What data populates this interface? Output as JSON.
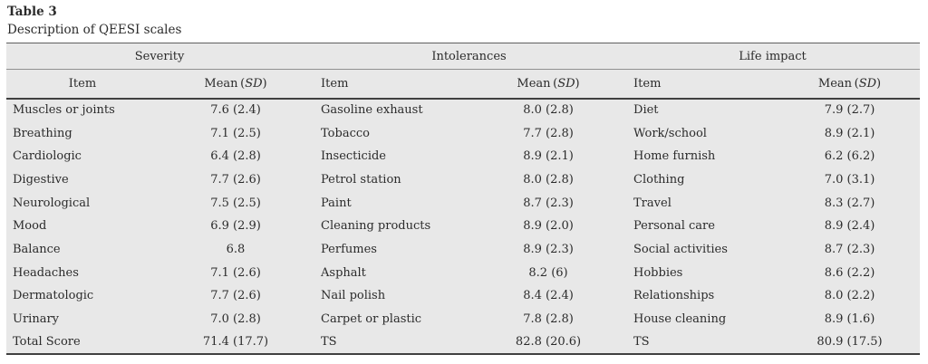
{
  "title": "Table 3",
  "subtitle": "Description of QEESI scales",
  "table": {
    "subheader": {
      "item_label": "Item",
      "mean_prefix": "Mean (",
      "mean_sd": "SD",
      "mean_suffix": ")"
    },
    "groups": [
      {
        "label": "Severity",
        "rows": [
          {
            "item": "Muscles or joints",
            "mean": "7.6 (2.4)"
          },
          {
            "item": "Breathing",
            "mean": "7.1 (2.5)"
          },
          {
            "item": "Cardiologic",
            "mean": "6.4 (2.8)"
          },
          {
            "item": "Digestive",
            "mean": "7.7 (2.6)"
          },
          {
            "item": "Neurological",
            "mean": "7.5 (2.5)"
          },
          {
            "item": "Mood",
            "mean": "6.9 (2.9)"
          },
          {
            "item": "Balance",
            "mean": "6.8"
          },
          {
            "item": "Headaches",
            "mean": "7.1 (2.6)"
          },
          {
            "item": "Dermatologic",
            "mean": "7.7 (2.6)"
          },
          {
            "item": "Urinary",
            "mean": "7.0 (2.8)"
          },
          {
            "item": "Total Score",
            "mean": "71.4 (17.7)"
          }
        ]
      },
      {
        "label": "Intolerances",
        "rows": [
          {
            "item": "Gasoline exhaust",
            "mean": "8.0 (2.8)"
          },
          {
            "item": "Tobacco",
            "mean": "7.7 (2.8)"
          },
          {
            "item": "Insecticide",
            "mean": "8.9 (2.1)"
          },
          {
            "item": "Petrol station",
            "mean": "8.0 (2.8)"
          },
          {
            "item": "Paint",
            "mean": "8.7 (2.3)"
          },
          {
            "item": "Cleaning products",
            "mean": "8.9 (2.0)"
          },
          {
            "item": "Perfumes",
            "mean": "8.9 (2.3)"
          },
          {
            "item": "Asphalt",
            "mean": "8.2 (6)"
          },
          {
            "item": "Nail polish",
            "mean": "8.4 (2.4)"
          },
          {
            "item": "Carpet or plastic",
            "mean": "7.8 (2.8)"
          },
          {
            "item": "TS",
            "mean": "82.8 (20.6)"
          }
        ]
      },
      {
        "label": "Life impact",
        "rows": [
          {
            "item": "Diet",
            "mean": "7.9 (2.7)"
          },
          {
            "item": "Work/school",
            "mean": "8.9 (2.1)"
          },
          {
            "item": "Home furnish",
            "mean": "6.2 (6.2)"
          },
          {
            "item": "Clothing",
            "mean": "7.0 (3.1)"
          },
          {
            "item": "Travel",
            "mean": "8.3 (2.7)"
          },
          {
            "item": "Personal care",
            "mean": "8.9 (2.4)"
          },
          {
            "item": "Social activities",
            "mean": "8.7 (2.3)"
          },
          {
            "item": "Hobbies",
            "mean": "8.6 (2.2)"
          },
          {
            "item": "Relationships",
            "mean": "8.0 (2.2)"
          },
          {
            "item": "House cleaning",
            "mean": "8.9 (1.6)"
          },
          {
            "item": "TS",
            "mean": "80.9 (17.5)"
          }
        ]
      }
    ]
  },
  "colors": {
    "table_bg": "#e8e8e8",
    "text": "#2b2b2b",
    "rule_dark": "#404040",
    "rule_mid": "#5f5f5f",
    "rule_light": "#919191",
    "page_bg": "#ffffff"
  }
}
